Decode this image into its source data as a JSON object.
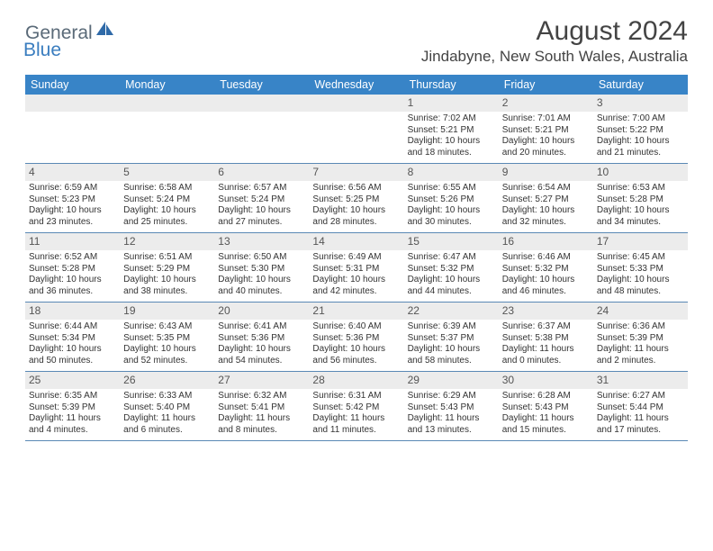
{
  "logo": {
    "general": "General",
    "blue": "Blue"
  },
  "title": "August 2024",
  "location": "Jindabyne, New South Wales, Australia",
  "colors": {
    "header_bg": "#3884c7",
    "header_text": "#ffffff",
    "daynum_bg": "#ececec",
    "daynum_text": "#555555",
    "body_text": "#333333",
    "rule": "#5a89b5",
    "logo_general": "#5a6a78",
    "logo_blue": "#3a7dbf"
  },
  "weekdays": [
    "Sunday",
    "Monday",
    "Tuesday",
    "Wednesday",
    "Thursday",
    "Friday",
    "Saturday"
  ],
  "weeks": [
    [
      {
        "n": "",
        "sr": "",
        "ss": "",
        "dl": ""
      },
      {
        "n": "",
        "sr": "",
        "ss": "",
        "dl": ""
      },
      {
        "n": "",
        "sr": "",
        "ss": "",
        "dl": ""
      },
      {
        "n": "",
        "sr": "",
        "ss": "",
        "dl": ""
      },
      {
        "n": "1",
        "sr": "Sunrise: 7:02 AM",
        "ss": "Sunset: 5:21 PM",
        "dl": "Daylight: 10 hours and 18 minutes."
      },
      {
        "n": "2",
        "sr": "Sunrise: 7:01 AM",
        "ss": "Sunset: 5:21 PM",
        "dl": "Daylight: 10 hours and 20 minutes."
      },
      {
        "n": "3",
        "sr": "Sunrise: 7:00 AM",
        "ss": "Sunset: 5:22 PM",
        "dl": "Daylight: 10 hours and 21 minutes."
      }
    ],
    [
      {
        "n": "4",
        "sr": "Sunrise: 6:59 AM",
        "ss": "Sunset: 5:23 PM",
        "dl": "Daylight: 10 hours and 23 minutes."
      },
      {
        "n": "5",
        "sr": "Sunrise: 6:58 AM",
        "ss": "Sunset: 5:24 PM",
        "dl": "Daylight: 10 hours and 25 minutes."
      },
      {
        "n": "6",
        "sr": "Sunrise: 6:57 AM",
        "ss": "Sunset: 5:24 PM",
        "dl": "Daylight: 10 hours and 27 minutes."
      },
      {
        "n": "7",
        "sr": "Sunrise: 6:56 AM",
        "ss": "Sunset: 5:25 PM",
        "dl": "Daylight: 10 hours and 28 minutes."
      },
      {
        "n": "8",
        "sr": "Sunrise: 6:55 AM",
        "ss": "Sunset: 5:26 PM",
        "dl": "Daylight: 10 hours and 30 minutes."
      },
      {
        "n": "9",
        "sr": "Sunrise: 6:54 AM",
        "ss": "Sunset: 5:27 PM",
        "dl": "Daylight: 10 hours and 32 minutes."
      },
      {
        "n": "10",
        "sr": "Sunrise: 6:53 AM",
        "ss": "Sunset: 5:28 PM",
        "dl": "Daylight: 10 hours and 34 minutes."
      }
    ],
    [
      {
        "n": "11",
        "sr": "Sunrise: 6:52 AM",
        "ss": "Sunset: 5:28 PM",
        "dl": "Daylight: 10 hours and 36 minutes."
      },
      {
        "n": "12",
        "sr": "Sunrise: 6:51 AM",
        "ss": "Sunset: 5:29 PM",
        "dl": "Daylight: 10 hours and 38 minutes."
      },
      {
        "n": "13",
        "sr": "Sunrise: 6:50 AM",
        "ss": "Sunset: 5:30 PM",
        "dl": "Daylight: 10 hours and 40 minutes."
      },
      {
        "n": "14",
        "sr": "Sunrise: 6:49 AM",
        "ss": "Sunset: 5:31 PM",
        "dl": "Daylight: 10 hours and 42 minutes."
      },
      {
        "n": "15",
        "sr": "Sunrise: 6:47 AM",
        "ss": "Sunset: 5:32 PM",
        "dl": "Daylight: 10 hours and 44 minutes."
      },
      {
        "n": "16",
        "sr": "Sunrise: 6:46 AM",
        "ss": "Sunset: 5:32 PM",
        "dl": "Daylight: 10 hours and 46 minutes."
      },
      {
        "n": "17",
        "sr": "Sunrise: 6:45 AM",
        "ss": "Sunset: 5:33 PM",
        "dl": "Daylight: 10 hours and 48 minutes."
      }
    ],
    [
      {
        "n": "18",
        "sr": "Sunrise: 6:44 AM",
        "ss": "Sunset: 5:34 PM",
        "dl": "Daylight: 10 hours and 50 minutes."
      },
      {
        "n": "19",
        "sr": "Sunrise: 6:43 AM",
        "ss": "Sunset: 5:35 PM",
        "dl": "Daylight: 10 hours and 52 minutes."
      },
      {
        "n": "20",
        "sr": "Sunrise: 6:41 AM",
        "ss": "Sunset: 5:36 PM",
        "dl": "Daylight: 10 hours and 54 minutes."
      },
      {
        "n": "21",
        "sr": "Sunrise: 6:40 AM",
        "ss": "Sunset: 5:36 PM",
        "dl": "Daylight: 10 hours and 56 minutes."
      },
      {
        "n": "22",
        "sr": "Sunrise: 6:39 AM",
        "ss": "Sunset: 5:37 PM",
        "dl": "Daylight: 10 hours and 58 minutes."
      },
      {
        "n": "23",
        "sr": "Sunrise: 6:37 AM",
        "ss": "Sunset: 5:38 PM",
        "dl": "Daylight: 11 hours and 0 minutes."
      },
      {
        "n": "24",
        "sr": "Sunrise: 6:36 AM",
        "ss": "Sunset: 5:39 PM",
        "dl": "Daylight: 11 hours and 2 minutes."
      }
    ],
    [
      {
        "n": "25",
        "sr": "Sunrise: 6:35 AM",
        "ss": "Sunset: 5:39 PM",
        "dl": "Daylight: 11 hours and 4 minutes."
      },
      {
        "n": "26",
        "sr": "Sunrise: 6:33 AM",
        "ss": "Sunset: 5:40 PM",
        "dl": "Daylight: 11 hours and 6 minutes."
      },
      {
        "n": "27",
        "sr": "Sunrise: 6:32 AM",
        "ss": "Sunset: 5:41 PM",
        "dl": "Daylight: 11 hours and 8 minutes."
      },
      {
        "n": "28",
        "sr": "Sunrise: 6:31 AM",
        "ss": "Sunset: 5:42 PM",
        "dl": "Daylight: 11 hours and 11 minutes."
      },
      {
        "n": "29",
        "sr": "Sunrise: 6:29 AM",
        "ss": "Sunset: 5:43 PM",
        "dl": "Daylight: 11 hours and 13 minutes."
      },
      {
        "n": "30",
        "sr": "Sunrise: 6:28 AM",
        "ss": "Sunset: 5:43 PM",
        "dl": "Daylight: 11 hours and 15 minutes."
      },
      {
        "n": "31",
        "sr": "Sunrise: 6:27 AM",
        "ss": "Sunset: 5:44 PM",
        "dl": "Daylight: 11 hours and 17 minutes."
      }
    ]
  ]
}
